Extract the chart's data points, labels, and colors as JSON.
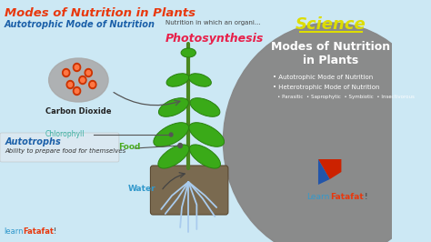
{
  "bg_color": "#cce8f4",
  "gray_circle_color": "#888888",
  "title": "Modes of Nutrition in Plants",
  "title_color": "#e8380d",
  "subtitle": "Autotrophic Mode of Nutrition",
  "subtitle_color": "#1a5fa8",
  "nutrition_def": "Nutrition in which an organi...",
  "photosynthesis_label": "Photosynthesis",
  "photosynthesis_color": "#e8204a",
  "co2_label": "Carbon Dioxide",
  "co2_color": "#222222",
  "chlorophyll_label": "Chlorophyll",
  "chlorophyll_color": "#3ab0a0",
  "food_label": "Food",
  "food_color": "#4aaa20",
  "water_label": "Water",
  "water_color": "#3399cc",
  "autotrophs_label": "Autotrophs",
  "autotrophs_color": "#1a5fa8",
  "autotrophs_def": "Ability to prepare food for themselves",
  "science_label": "Science",
  "science_color": "#dddd00",
  "right_title_line1": "Modes of Nutrition",
  "right_title_line2": "in Plants",
  "right_title_color": "#ffffff",
  "bullet1": "• Autotrophic Mode of Nutrition",
  "bullet2": "• Heterotrophic Mode of Nutrition",
  "bullet3": "• Parasitic  • Saprophytic  • Symbiotic  • Insectivorous",
  "bullet_color": "#ffffff",
  "brand_learn_color": "#3399cc",
  "brand_fatafat_color": "#e8380d",
  "divider_color": "#dddd00",
  "autotrophs_box_color": "#e0e8f0",
  "soil_color": "#7a6a50",
  "stem_color": "#4a8820",
  "leaf_color": "#3aaa18",
  "leaf_dark": "#2a8010",
  "root_color": "#aaccee",
  "cloud_color": "#aaaaaa",
  "dot_color": "#cc3300",
  "dot_inner": "#ff7744"
}
